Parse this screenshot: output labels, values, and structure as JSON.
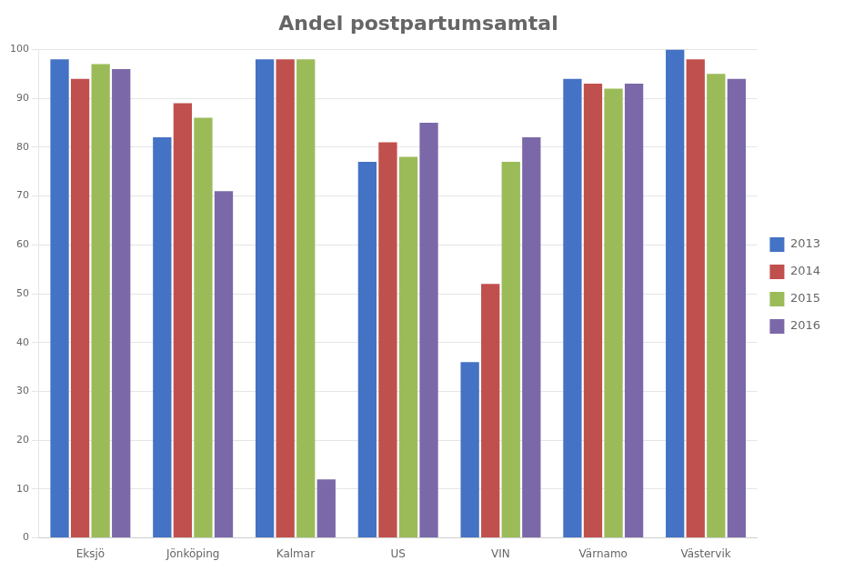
{
  "chart_data": {
    "type": "bar",
    "title": "Andel postpartumsamtal",
    "categories": [
      "Eksjö",
      "Jönköping",
      "Kalmar",
      "US",
      "VIN",
      "Värnamo",
      "Västervik"
    ],
    "series": [
      {
        "name": "2013",
        "color": "#4472C4",
        "values": [
          98,
          82,
          98,
          77,
          36,
          94,
          100
        ]
      },
      {
        "name": "2014",
        "color": "#C0504D",
        "values": [
          94,
          89,
          98,
          81,
          52,
          93,
          98
        ]
      },
      {
        "name": "2015",
        "color": "#9BBB59",
        "values": [
          97,
          86,
          98,
          78,
          77,
          92,
          95
        ]
      },
      {
        "name": "2016",
        "color": "#7B68A8",
        "values": [
          96,
          71,
          12,
          85,
          82,
          93,
          94
        ]
      }
    ],
    "ylim": [
      0,
      100
    ],
    "yticks": [
      0,
      10,
      20,
      30,
      40,
      50,
      60,
      70,
      80,
      90,
      100
    ],
    "grid": true,
    "legend": "right"
  }
}
